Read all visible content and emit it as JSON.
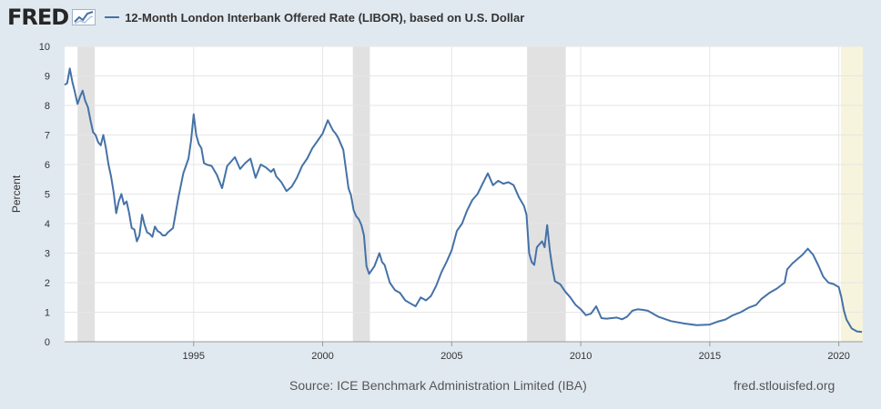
{
  "brand": {
    "name": "FRED",
    "icon": "line-chart-icon"
  },
  "footer": {
    "source": "Source: ICE Benchmark Administration Limited (IBA)",
    "site": "fred.stlouisfed.org"
  },
  "colors": {
    "background": "#e1e9f0",
    "plot_background": "#ffffff",
    "series": "#4572a7",
    "recession_shade": "#e1e1e1",
    "latest_period_shade": "#f6f4dc",
    "grid": "#e6e6e6"
  },
  "chart_data": {
    "type": "line",
    "title": "",
    "xlabel": "",
    "ylabel": "Percent",
    "xlim": [
      1990.0,
      2020.93
    ],
    "ylim": [
      0,
      10
    ],
    "grid": true,
    "legend": "top-left",
    "y_ticks": [
      0,
      1,
      2,
      3,
      4,
      5,
      6,
      7,
      8,
      9,
      10
    ],
    "x_ticks": [
      1995,
      2000,
      2005,
      2010,
      2015,
      2020
    ],
    "shaded_periods": [
      {
        "start": 1990.5,
        "end": 1991.17,
        "kind": "recession"
      },
      {
        "start": 2001.17,
        "end": 2001.83,
        "kind": "recession"
      },
      {
        "start": 2007.92,
        "end": 2009.42,
        "kind": "recession"
      },
      {
        "start": 2020.08,
        "end": 2020.93,
        "kind": "latest"
      }
    ],
    "series": [
      {
        "name": "12-Month London Interbank Offered Rate (LIBOR), based on U.S. Dollar",
        "x": [
          1990.0,
          1990.1,
          1990.2,
          1990.3,
          1990.4,
          1990.5,
          1990.6,
          1990.7,
          1990.8,
          1990.9,
          1991.0,
          1991.1,
          1991.2,
          1991.3,
          1991.4,
          1991.5,
          1991.6,
          1991.7,
          1991.8,
          1991.9,
          1992.0,
          1992.1,
          1992.2,
          1992.3,
          1992.4,
          1992.5,
          1992.6,
          1992.7,
          1992.8,
          1992.9,
          1993.0,
          1993.1,
          1993.2,
          1993.3,
          1993.4,
          1993.5,
          1993.6,
          1993.7,
          1993.8,
          1993.9,
          1994.0,
          1994.2,
          1994.4,
          1994.6,
          1994.8,
          1994.9,
          1995.0,
          1995.1,
          1995.2,
          1995.3,
          1995.4,
          1995.5,
          1995.7,
          1995.9,
          1996.1,
          1996.3,
          1996.5,
          1996.6,
          1996.8,
          1997.0,
          1997.2,
          1997.4,
          1997.6,
          1997.8,
          1998.0,
          1998.1,
          1998.2,
          1998.4,
          1998.6,
          1998.8,
          1999.0,
          1999.2,
          1999.4,
          1999.6,
          1999.8,
          2000.0,
          2000.2,
          2000.4,
          2000.5,
          2000.6,
          2000.8,
          2001.0,
          2001.1,
          2001.2,
          2001.3,
          2001.4,
          2001.5,
          2001.6,
          2001.7,
          2001.8,
          2002.0,
          2002.2,
          2002.3,
          2002.4,
          2002.6,
          2002.8,
          2003.0,
          2003.2,
          2003.4,
          2003.6,
          2003.8,
          2004.0,
          2004.2,
          2004.4,
          2004.6,
          2004.8,
          2005.0,
          2005.2,
          2005.4,
          2005.6,
          2005.8,
          2006.0,
          2006.2,
          2006.4,
          2006.6,
          2006.8,
          2007.0,
          2007.2,
          2007.4,
          2007.6,
          2007.8,
          2007.9,
          2008.0,
          2008.1,
          2008.2,
          2008.3,
          2008.4,
          2008.5,
          2008.6,
          2008.7,
          2008.8,
          2008.9,
          2009.0,
          2009.2,
          2009.4,
          2009.6,
          2009.8,
          2010.0,
          2010.2,
          2010.4,
          2010.6,
          2010.8,
          2011.0,
          2011.2,
          2011.4,
          2011.6,
          2011.8,
          2012.0,
          2012.2,
          2012.4,
          2012.6,
          2012.8,
          2013.0,
          2013.5,
          2014.0,
          2014.5,
          2015.0,
          2015.3,
          2015.6,
          2015.9,
          2016.2,
          2016.5,
          2016.8,
          2017.0,
          2017.3,
          2017.6,
          2017.9,
          2018.0,
          2018.2,
          2018.4,
          2018.6,
          2018.8,
          2018.9,
          2019.0,
          2019.2,
          2019.4,
          2019.6,
          2019.8,
          2020.0,
          2020.1,
          2020.2,
          2020.3,
          2020.5,
          2020.7,
          2020.9
        ],
        "values": [
          8.7,
          8.75,
          9.25,
          8.8,
          8.45,
          8.05,
          8.3,
          8.5,
          8.15,
          7.95,
          7.5,
          7.1,
          7.0,
          6.75,
          6.65,
          7.0,
          6.55,
          6.0,
          5.6,
          5.05,
          4.35,
          4.75,
          5.0,
          4.65,
          4.75,
          4.35,
          3.85,
          3.8,
          3.4,
          3.6,
          4.3,
          3.95,
          3.7,
          3.65,
          3.55,
          3.9,
          3.75,
          3.7,
          3.6,
          3.6,
          3.7,
          3.85,
          4.85,
          5.7,
          6.2,
          6.8,
          7.7,
          7.0,
          6.7,
          6.55,
          6.05,
          6.0,
          5.95,
          5.65,
          5.2,
          5.95,
          6.15,
          6.25,
          5.85,
          6.05,
          6.2,
          5.55,
          6.0,
          5.9,
          5.75,
          5.85,
          5.6,
          5.4,
          5.1,
          5.25,
          5.55,
          5.95,
          6.2,
          6.55,
          6.8,
          7.05,
          7.5,
          7.15,
          7.05,
          6.9,
          6.5,
          5.2,
          4.95,
          4.45,
          4.25,
          4.15,
          3.95,
          3.6,
          2.55,
          2.3,
          2.55,
          3.0,
          2.7,
          2.6,
          2.0,
          1.75,
          1.65,
          1.4,
          1.3,
          1.2,
          1.5,
          1.4,
          1.55,
          1.9,
          2.35,
          2.7,
          3.1,
          3.75,
          4.0,
          4.45,
          4.8,
          5.0,
          5.35,
          5.7,
          5.3,
          5.45,
          5.35,
          5.4,
          5.3,
          4.9,
          4.6,
          4.3,
          3.0,
          2.7,
          2.6,
          3.2,
          3.3,
          3.4,
          3.2,
          3.95,
          3.1,
          2.5,
          2.05,
          1.95,
          1.7,
          1.5,
          1.25,
          1.1,
          0.9,
          0.95,
          1.2,
          0.8,
          0.78,
          0.8,
          0.82,
          0.76,
          0.85,
          1.05,
          1.1,
          1.08,
          1.05,
          0.95,
          0.85,
          0.7,
          0.62,
          0.56,
          0.58,
          0.68,
          0.75,
          0.9,
          1.0,
          1.15,
          1.25,
          1.45,
          1.65,
          1.8,
          2.0,
          2.45,
          2.65,
          2.8,
          2.95,
          3.15,
          3.05,
          2.95,
          2.6,
          2.2,
          2.0,
          1.95,
          1.85,
          1.5,
          1.05,
          0.75,
          0.45,
          0.35,
          0.33
        ]
      }
    ]
  }
}
